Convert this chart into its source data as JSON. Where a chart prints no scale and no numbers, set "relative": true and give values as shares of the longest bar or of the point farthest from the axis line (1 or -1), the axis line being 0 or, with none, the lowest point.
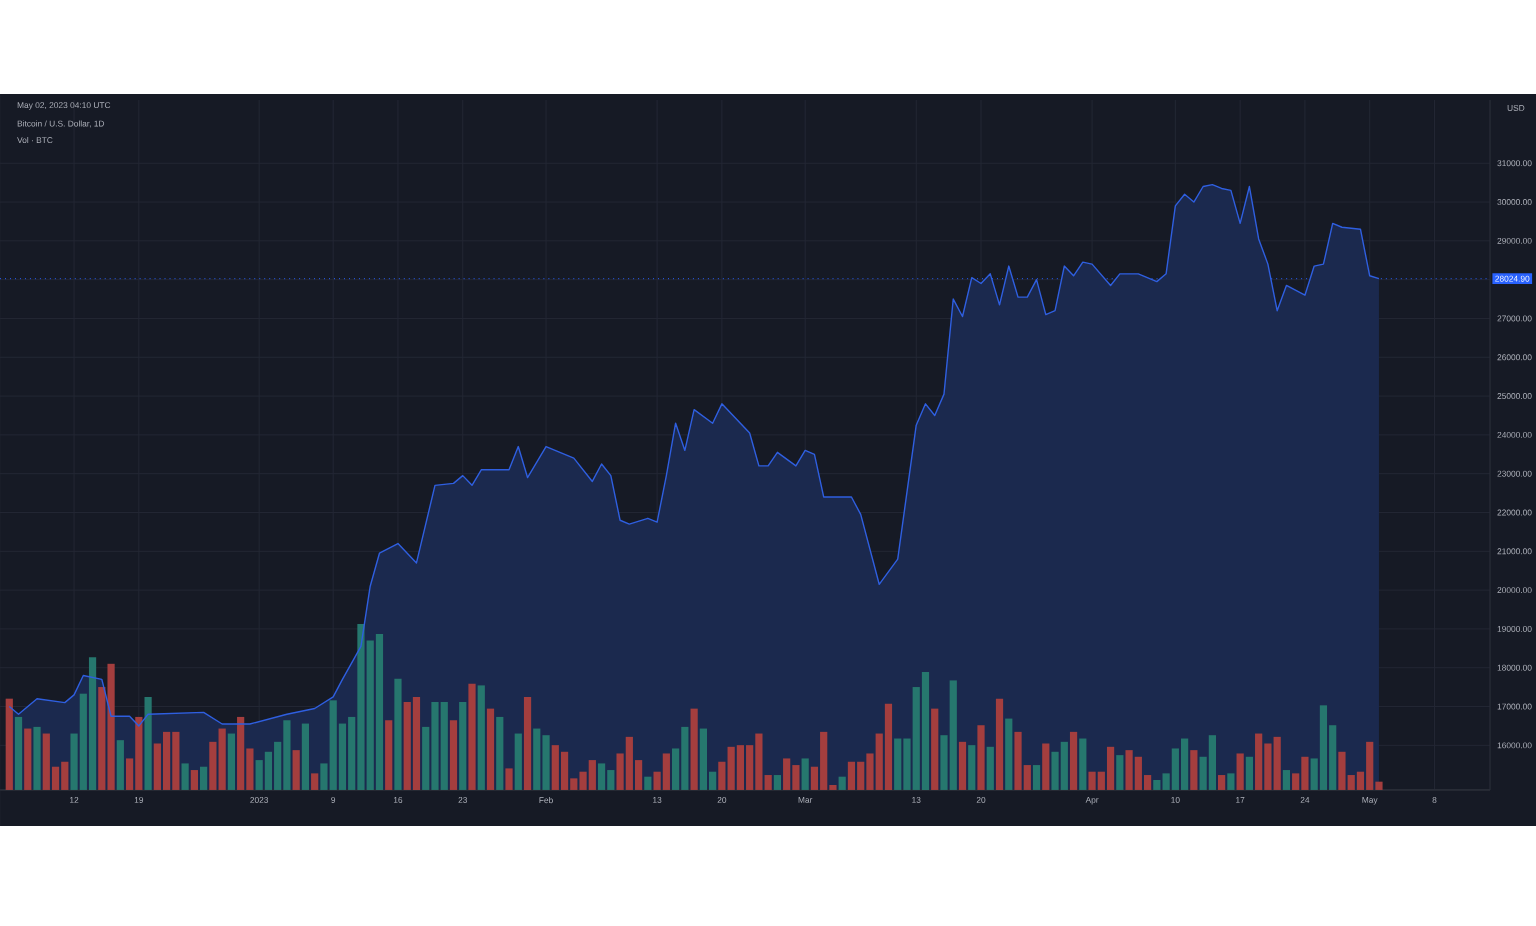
{
  "chart_data": [
    {
      "type": "area",
      "title": "Bitcoin / U.S. Dollar, 1D",
      "ylabel": "USD",
      "annotations": [
        "May 02, 2023 04:10 UTC"
      ],
      "ref_lines": [
        {
          "axis": "y",
          "value": 28024.9,
          "label": "28024.90",
          "color": "#2962ff",
          "line_style": "dotted"
        }
      ],
      "xlim": [
        "2022-12-04",
        "2023-05-14"
      ],
      "ylim": [
        14850,
        32630
      ],
      "grid": true,
      "xticks": [
        {
          "value": "2022-12-12",
          "label": "12"
        },
        {
          "value": "2022-12-19",
          "label": "19"
        },
        {
          "value": "2023-01-01",
          "label": "2023"
        },
        {
          "value": "2023-01-09",
          "label": "9"
        },
        {
          "value": "2023-01-16",
          "label": "16"
        },
        {
          "value": "2023-01-23",
          "label": "23"
        },
        {
          "value": "2023-02-01",
          "label": "Feb"
        },
        {
          "value": "2023-02-13",
          "label": "13"
        },
        {
          "value": "2023-02-20",
          "label": "20"
        },
        {
          "value": "2023-03-01",
          "label": "Mar"
        },
        {
          "value": "2023-03-13",
          "label": "13"
        },
        {
          "value": "2023-03-20",
          "label": "20"
        },
        {
          "value": "2023-04-01",
          "label": "Apr"
        },
        {
          "value": "2023-04-10",
          "label": "10"
        },
        {
          "value": "2023-04-17",
          "label": "17"
        },
        {
          "value": "2023-04-24",
          "label": "24"
        },
        {
          "value": "2023-05-01",
          "label": "May"
        },
        {
          "value": "2023-05-08",
          "label": "8"
        }
      ],
      "yticks": [
        {
          "value": 16000,
          "label": "16000.00"
        },
        {
          "value": 17000,
          "label": "17000.00"
        },
        {
          "value": 18000,
          "label": "18000.00"
        },
        {
          "value": 19000,
          "label": "19000.00"
        },
        {
          "value": 20000,
          "label": "20000.00"
        },
        {
          "value": 21000,
          "label": "21000.00"
        },
        {
          "value": 22000,
          "label": "22000.00"
        },
        {
          "value": 23000,
          "label": "23000.00"
        },
        {
          "value": 24000,
          "label": "24000.00"
        },
        {
          "value": 25000,
          "label": "25000.00"
        },
        {
          "value": 26000,
          "label": "26000.00"
        },
        {
          "value": 27000,
          "label": "27000.00"
        },
        {
          "value": 28000,
          "label": null
        },
        {
          "value": 29000,
          "label": "29000.00"
        },
        {
          "value": 30000,
          "label": "30000.00"
        },
        {
          "value": 31000,
          "label": "31000.00"
        }
      ],
      "series": [
        {
          "color": "#2f5fe0",
          "x": [
            "2022-12-05",
            "2022-12-06",
            "2022-12-08",
            "2022-12-11",
            "2022-12-12",
            "2022-12-13",
            "2022-12-15",
            "2022-12-16",
            "2022-12-18",
            "2022-12-19",
            "2022-12-20",
            "2022-12-26",
            "2022-12-28",
            "2022-12-31",
            "2023-01-04",
            "2023-01-07",
            "2023-01-09",
            "2023-01-10",
            "2023-01-12",
            "2023-01-13",
            "2023-01-14",
            "2023-01-16",
            "2023-01-18",
            "2023-01-20",
            "2023-01-22",
            "2023-01-23",
            "2023-01-24",
            "2023-01-25",
            "2023-01-28",
            "2023-01-29",
            "2023-01-30",
            "2023-02-01",
            "2023-02-04",
            "2023-02-06",
            "2023-02-07",
            "2023-02-08",
            "2023-02-09",
            "2023-02-10",
            "2023-02-12",
            "2023-02-13",
            "2023-02-14",
            "2023-02-15",
            "2023-02-16",
            "2023-02-17",
            "2023-02-19",
            "2023-02-20",
            "2023-02-23",
            "2023-02-24",
            "2023-02-25",
            "2023-02-26",
            "2023-02-28",
            "2023-03-01",
            "2023-03-02",
            "2023-03-03",
            "2023-03-06",
            "2023-03-07",
            "2023-03-09",
            "2023-03-11",
            "2023-03-13",
            "2023-03-14",
            "2023-03-15",
            "2023-03-16",
            "2023-03-17",
            "2023-03-18",
            "2023-03-19",
            "2023-03-20",
            "2023-03-21",
            "2023-03-22",
            "2023-03-23",
            "2023-03-24",
            "2023-03-25",
            "2023-03-26",
            "2023-03-27",
            "2023-03-28",
            "2023-03-29",
            "2023-03-30",
            "2023-03-31",
            "2023-04-01",
            "2023-04-03",
            "2023-04-04",
            "2023-04-06",
            "2023-04-08",
            "2023-04-09",
            "2023-04-10",
            "2023-04-11",
            "2023-04-12",
            "2023-04-13",
            "2023-04-14",
            "2023-04-15",
            "2023-04-16",
            "2023-04-17",
            "2023-04-18",
            "2023-04-19",
            "2023-04-20",
            "2023-04-21",
            "2023-04-22",
            "2023-04-24",
            "2023-04-25",
            "2023-04-26",
            "2023-04-27",
            "2023-04-28",
            "2023-04-30",
            "2023-05-01",
            "2023-05-02"
          ],
          "values": [
            17000,
            16800,
            17200,
            17100,
            17300,
            17800,
            17700,
            16750,
            16750,
            16500,
            16800,
            16850,
            16550,
            16550,
            16800,
            16950,
            17250,
            17700,
            18550,
            20100,
            20950,
            21200,
            20700,
            22700,
            22750,
            22950,
            22700,
            23100,
            23100,
            23700,
            22900,
            23700,
            23400,
            22800,
            23250,
            22950,
            21800,
            21700,
            21850,
            21750,
            22950,
            24300,
            23600,
            24650,
            24300,
            24800,
            24050,
            23200,
            23200,
            23550,
            23200,
            23600,
            23500,
            22400,
            22400,
            21950,
            20150,
            20800,
            24250,
            24800,
            24500,
            25050,
            27500,
            27050,
            28050,
            27900,
            28150,
            27350,
            28350,
            27550,
            27550,
            28000,
            27100,
            27200,
            28350,
            28100,
            28450,
            28400,
            27850,
            28150,
            28150,
            27950,
            28150,
            29900,
            30200,
            30000,
            30400,
            30450,
            30350,
            30300,
            29450,
            30400,
            29050,
            28400,
            27200,
            27850,
            27600,
            28350,
            28400,
            29450,
            29350,
            29300,
            28100,
            28024.9
          ]
        }
      ]
    },
    {
      "type": "bar",
      "title": "Vol · BTC",
      "relative": true,
      "xlim": [
        "2022-12-04",
        "2023-05-14"
      ],
      "x": [
        "2022-12-05",
        "2022-12-06",
        "2022-12-07",
        "2022-12-08",
        "2022-12-09",
        "2022-12-10",
        "2022-12-11",
        "2022-12-12",
        "2022-12-13",
        "2022-12-14",
        "2022-12-15",
        "2022-12-16",
        "2022-12-17",
        "2022-12-18",
        "2022-12-19",
        "2022-12-20",
        "2022-12-21",
        "2022-12-22",
        "2022-12-23",
        "2022-12-24",
        "2022-12-25",
        "2022-12-26",
        "2022-12-27",
        "2022-12-28",
        "2022-12-29",
        "2022-12-30",
        "2022-12-31",
        "2023-01-01",
        "2023-01-02",
        "2023-01-03",
        "2023-01-04",
        "2023-01-05",
        "2023-01-06",
        "2023-01-07",
        "2023-01-08",
        "2023-01-09",
        "2023-01-10",
        "2023-01-11",
        "2023-01-12",
        "2023-01-13",
        "2023-01-14",
        "2023-01-15",
        "2023-01-16",
        "2023-01-17",
        "2023-01-18",
        "2023-01-19",
        "2023-01-20",
        "2023-01-21",
        "2023-01-22",
        "2023-01-23",
        "2023-01-24",
        "2023-01-25",
        "2023-01-26",
        "2023-01-27",
        "2023-01-28",
        "2023-01-29",
        "2023-01-30",
        "2023-01-31",
        "2023-02-01",
        "2023-02-02",
        "2023-02-03",
        "2023-02-04",
        "2023-02-05",
        "2023-02-06",
        "2023-02-07",
        "2023-02-08",
        "2023-02-09",
        "2023-02-10",
        "2023-02-11",
        "2023-02-12",
        "2023-02-13",
        "2023-02-14",
        "2023-02-15",
        "2023-02-16",
        "2023-02-17",
        "2023-02-18",
        "2023-02-19",
        "2023-02-20",
        "2023-02-21",
        "2023-02-22",
        "2023-02-23",
        "2023-02-24",
        "2023-02-25",
        "2023-02-26",
        "2023-02-27",
        "2023-02-28",
        "2023-03-01",
        "2023-03-02",
        "2023-03-03",
        "2023-03-04",
        "2023-03-05",
        "2023-03-06",
        "2023-03-07",
        "2023-03-08",
        "2023-03-09",
        "2023-03-10",
        "2023-03-11",
        "2023-03-12",
        "2023-03-13",
        "2023-03-14",
        "2023-03-15",
        "2023-03-16",
        "2023-03-17",
        "2023-03-18",
        "2023-03-19",
        "2023-03-20",
        "2023-03-21",
        "2023-03-22",
        "2023-03-23",
        "2023-03-24",
        "2023-03-25",
        "2023-03-26",
        "2023-03-27",
        "2023-03-28",
        "2023-03-29",
        "2023-03-30",
        "2023-03-31",
        "2023-04-01",
        "2023-04-02",
        "2023-04-03",
        "2023-04-04",
        "2023-04-05",
        "2023-04-06",
        "2023-04-07",
        "2023-04-08",
        "2023-04-09",
        "2023-04-10",
        "2023-04-11",
        "2023-04-12",
        "2023-04-13",
        "2023-04-14",
        "2023-04-15",
        "2023-04-16",
        "2023-04-17",
        "2023-04-18",
        "2023-04-19",
        "2023-04-20",
        "2023-04-21",
        "2023-04-22",
        "2023-04-23",
        "2023-04-24",
        "2023-04-25",
        "2023-04-26",
        "2023-04-27",
        "2023-04-28",
        "2023-04-29",
        "2023-04-30",
        "2023-05-01",
        "2023-05-02"
      ],
      "values": [
        0.55,
        0.44,
        0.37,
        0.38,
        0.34,
        0.14,
        0.17,
        0.34,
        0.58,
        0.8,
        0.62,
        0.76,
        0.3,
        0.19,
        0.44,
        0.56,
        0.28,
        0.35,
        0.35,
        0.16,
        0.12,
        0.14,
        0.29,
        0.37,
        0.34,
        0.44,
        0.25,
        0.18,
        0.23,
        0.29,
        0.42,
        0.24,
        0.4,
        0.1,
        0.16,
        0.54,
        0.4,
        0.44,
        1.0,
        0.9,
        0.94,
        0.42,
        0.67,
        0.53,
        0.56,
        0.38,
        0.53,
        0.53,
        0.42,
        0.53,
        0.64,
        0.63,
        0.49,
        0.44,
        0.13,
        0.34,
        0.56,
        0.37,
        0.33,
        0.27,
        0.23,
        0.07,
        0.11,
        0.18,
        0.16,
        0.12,
        0.22,
        0.32,
        0.18,
        0.08,
        0.11,
        0.22,
        0.25,
        0.38,
        0.49,
        0.37,
        0.11,
        0.17,
        0.26,
        0.27,
        0.27,
        0.34,
        0.09,
        0.09,
        0.19,
        0.15,
        0.19,
        0.14,
        0.35,
        0.03,
        0.08,
        0.17,
        0.17,
        0.22,
        0.34,
        0.52,
        0.31,
        0.31,
        0.62,
        0.71,
        0.49,
        0.33,
        0.66,
        0.29,
        0.27,
        0.39,
        0.26,
        0.55,
        0.43,
        0.35,
        0.15,
        0.15,
        0.28,
        0.23,
        0.29,
        0.35,
        0.31,
        0.11,
        0.11,
        0.26,
        0.21,
        0.24,
        0.2,
        0.09,
        0.06,
        0.1,
        0.25,
        0.31,
        0.24,
        0.2,
        0.33,
        0.09,
        0.1,
        0.22,
        0.2,
        0.34,
        0.28,
        0.32,
        0.12,
        0.1,
        0.2,
        0.19,
        0.51,
        0.39,
        0.23,
        0.09,
        0.11,
        0.29,
        0.05
      ],
      "colors": [
        "#a43e3e",
        "#26776e",
        "#a43e3e",
        "#26776e",
        "#a43e3e",
        "#a43e3e",
        "#a43e3e",
        "#26776e",
        "#26776e",
        "#26776e",
        "#a43e3e",
        "#a43e3e",
        "#26776e",
        "#a43e3e",
        "#a43e3e",
        "#26776e",
        "#a43e3e",
        "#a43e3e",
        "#a43e3e",
        "#26776e",
        "#a43e3e",
        "#26776e",
        "#a43e3e",
        "#a43e3e",
        "#26776e",
        "#a43e3e",
        "#a43e3e",
        "#26776e",
        "#26776e",
        "#26776e",
        "#26776e",
        "#a43e3e",
        "#26776e",
        "#a43e3e",
        "#26776e",
        "#26776e",
        "#26776e",
        "#26776e",
        "#26776e",
        "#26776e",
        "#26776e",
        "#a43e3e",
        "#26776e",
        "#a43e3e",
        "#a43e3e",
        "#26776e",
        "#26776e",
        "#26776e",
        "#a43e3e",
        "#26776e",
        "#a43e3e",
        "#26776e",
        "#a43e3e",
        "#26776e",
        "#a43e3e",
        "#26776e",
        "#a43e3e",
        "#26776e",
        "#26776e",
        "#a43e3e",
        "#a43e3e",
        "#a43e3e",
        "#a43e3e",
        "#a43e3e",
        "#26776e",
        "#26776e",
        "#a43e3e",
        "#a43e3e",
        "#a43e3e",
        "#26776e",
        "#a43e3e",
        "#a43e3e",
        "#26776e",
        "#26776e",
        "#a43e3e",
        "#26776e",
        "#26776e",
        "#a43e3e",
        "#a43e3e",
        "#a43e3e",
        "#a43e3e",
        "#a43e3e",
        "#a43e3e",
        "#26776e",
        "#a43e3e",
        "#a43e3e",
        "#26776e",
        "#a43e3e",
        "#a43e3e",
        "#a43e3e",
        "#26776e",
        "#a43e3e",
        "#a43e3e",
        "#a43e3e",
        "#a43e3e",
        "#a43e3e",
        "#26776e",
        "#26776e",
        "#26776e",
        "#26776e",
        "#a43e3e",
        "#26776e",
        "#26776e",
        "#a43e3e",
        "#26776e",
        "#a43e3e",
        "#26776e",
        "#a43e3e",
        "#26776e",
        "#a43e3e",
        "#a43e3e",
        "#26776e",
        "#a43e3e",
        "#26776e",
        "#26776e",
        "#a43e3e",
        "#26776e",
        "#a43e3e",
        "#a43e3e",
        "#a43e3e",
        "#26776e",
        "#a43e3e",
        "#a43e3e",
        "#a43e3e",
        "#26776e",
        "#26776e",
        "#26776e",
        "#26776e",
        "#a43e3e",
        "#26776e",
        "#26776e",
        "#a43e3e",
        "#26776e",
        "#a43e3e",
        "#26776e",
        "#a43e3e",
        "#a43e3e",
        "#a43e3e",
        "#26776e",
        "#a43e3e",
        "#a43e3e",
        "#26776e",
        "#26776e",
        "#26776e",
        "#a43e3e",
        "#a43e3e",
        "#a43e3e",
        "#a43e3e",
        "#a43e3e"
      ]
    }
  ]
}
